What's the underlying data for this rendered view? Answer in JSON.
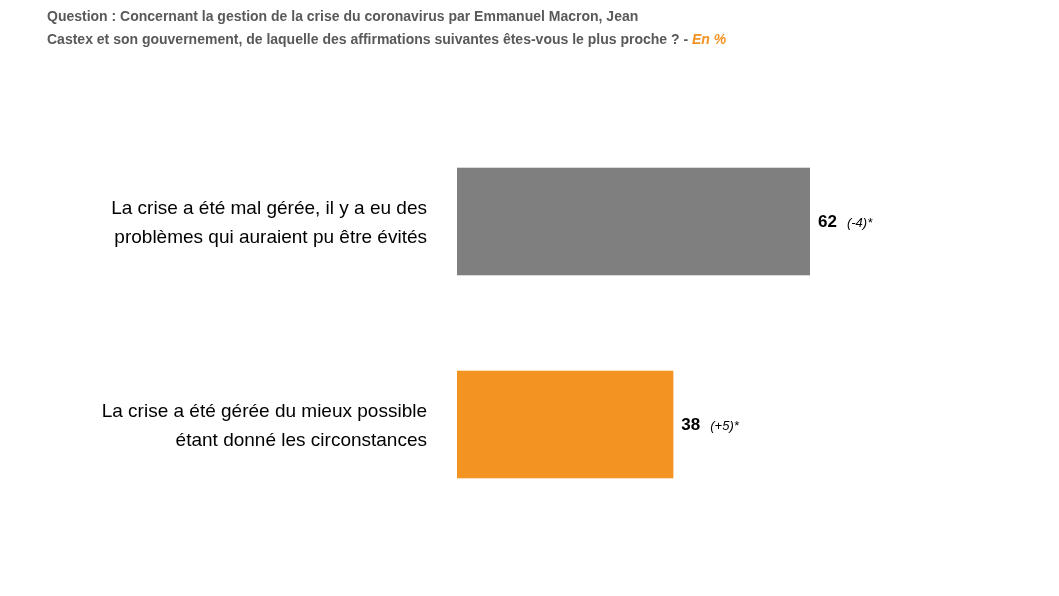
{
  "chart_data": {
    "type": "bar",
    "orientation": "horizontal",
    "title": "Question : Concernant la gestion de la crise du coronavirus par Emmanuel Macron, Jean Castex et son gouvernement, de laquelle des affirmations suivantes êtes-vous le plus proche ? -",
    "subtitle": "En %",
    "categories": [
      "La crise a été mal gérée, il y a eu des problèmes qui auraient pu être évités",
      "La crise a été gérée du mieux possible étant donné les circonstances"
    ],
    "values": [
      62,
      38
    ],
    "colors": [
      "#7f7f7f",
      "#f39321"
    ],
    "value_labels": [
      "62 (-4)*",
      "38 (+5)*"
    ]
  }
}
